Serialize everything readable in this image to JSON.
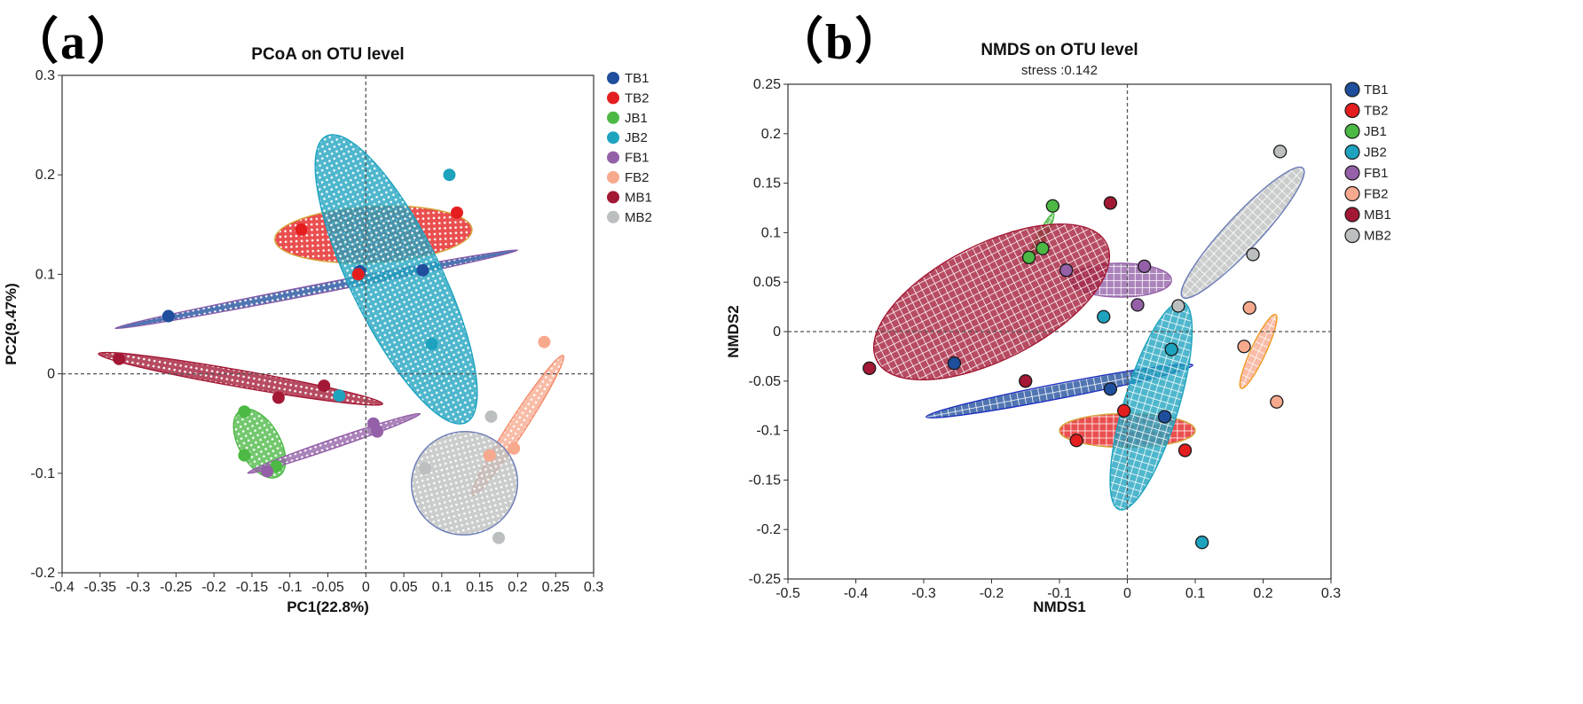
{
  "panel_labels": {
    "a": "（a）",
    "b": "（b）"
  },
  "palette": {
    "TB1": "#1f4e9c",
    "TB2": "#e41e1e",
    "JB1": "#4cb944",
    "JB2": "#1ea3bf",
    "FB1": "#9460a8",
    "FB2": "#f7a98e",
    "MB1": "#a31834",
    "MB2": "#bcbfbf"
  },
  "chart_data": [
    {
      "type": "scatter",
      "title": "PCoA on OTU level",
      "subtitle": "",
      "xlabel": "PC1(22.8%)",
      "ylabel": "PC2(9.47%)",
      "xlim": [
        -0.4,
        0.3
      ],
      "ylim": [
        -0.2,
        0.3
      ],
      "xticks": [
        -0.4,
        -0.35,
        -0.3,
        -0.25,
        -0.2,
        -0.15,
        -0.1,
        -0.05,
        0,
        0.05,
        0.1,
        0.15,
        0.2,
        0.25,
        0.3
      ],
      "xtick_labels": [
        "-0.4",
        "-0.35",
        "-0.3",
        "-0.25",
        "-0.2",
        "-0.15",
        "-0.1",
        "-0.05",
        "0",
        "0.05",
        "0.1",
        "0.15",
        "0.2",
        "0.25",
        "0.3"
      ],
      "yticks": [
        -0.2,
        -0.1,
        0,
        0.1,
        0.2,
        0.3
      ],
      "ytick_labels": [
        "-0.2",
        "-0.1",
        "0",
        "0.1",
        "0.2",
        "0.3"
      ],
      "legend": [
        "TB1",
        "TB2",
        "JB1",
        "JB2",
        "FB1",
        "FB2",
        "MB1",
        "MB2"
      ],
      "marker_outline": false,
      "series": [
        {
          "name": "TB1",
          "points": [
            [
              -0.26,
              0.058
            ],
            [
              -0.008,
              0.103
            ],
            [
              0.075,
              0.104
            ]
          ],
          "ellipse": {
            "cx": -0.065,
            "cy": 0.085,
            "rx": 0.27,
            "ry": 0.006,
            "angle_deg": 11,
            "stroke": "#8a5aa8"
          }
        },
        {
          "name": "TB2",
          "points": [
            [
              -0.085,
              0.145
            ],
            [
              0.12,
              0.162
            ],
            [
              -0.01,
              0.1
            ]
          ],
          "ellipse": {
            "cx": 0.01,
            "cy": 0.14,
            "rx": 0.13,
            "ry": 0.037,
            "angle_deg": 3,
            "stroke": "#d4a537"
          }
        },
        {
          "name": "JB1",
          "points": [
            [
              -0.16,
              -0.038
            ],
            [
              -0.16,
              -0.082
            ],
            [
              -0.118,
              -0.093
            ]
          ],
          "ellipse": {
            "cx": -0.14,
            "cy": -0.07,
            "rx": 0.027,
            "ry": 0.05,
            "angle_deg": 30,
            "stroke": "#4cb944"
          }
        },
        {
          "name": "JB2",
          "points": [
            [
              0.11,
              0.2
            ],
            [
              0.087,
              0.03
            ],
            [
              -0.035,
              -0.022
            ]
          ],
          "ellipse": {
            "cx": 0.04,
            "cy": 0.095,
            "rx": 0.06,
            "ry": 0.21,
            "angle_deg": 26,
            "stroke": "#1ea3bf"
          }
        },
        {
          "name": "FB1",
          "points": [
            [
              -0.13,
              -0.098
            ],
            [
              0.01,
              -0.05
            ],
            [
              0.015,
              -0.058
            ]
          ],
          "ellipse": {
            "cx": -0.042,
            "cy": -0.07,
            "rx": 0.12,
            "ry": 0.006,
            "angle_deg": 19,
            "stroke": "#9460a8"
          }
        },
        {
          "name": "FB2",
          "points": [
            [
              0.235,
              0.032
            ],
            [
              0.195,
              -0.075
            ],
            [
              0.163,
              -0.082
            ]
          ],
          "ellipse": {
            "cx": 0.2,
            "cy": -0.052,
            "rx": 0.11,
            "ry": 0.011,
            "angle_deg": 57,
            "stroke": "#f58c6b"
          }
        },
        {
          "name": "MB1",
          "points": [
            [
              -0.325,
              0.015
            ],
            [
              -0.115,
              -0.024
            ],
            [
              -0.055,
              -0.012
            ]
          ],
          "ellipse": {
            "cx": -0.165,
            "cy": -0.005,
            "rx": 0.19,
            "ry": 0.011,
            "angle_deg": -10,
            "stroke": "#a31834"
          }
        },
        {
          "name": "MB2",
          "points": [
            [
              0.165,
              -0.043
            ],
            [
              0.078,
              -0.095
            ],
            [
              0.175,
              -0.165
            ]
          ],
          "ellipse": {
            "cx": 0.13,
            "cy": -0.11,
            "rx": 0.07,
            "ry": 0.068,
            "angle_deg": 15,
            "stroke": "#6b7bb6"
          }
        }
      ]
    },
    {
      "type": "scatter",
      "title": "NMDS on OTU level",
      "subtitle": "stress :0.142",
      "xlabel": "NMDS1",
      "ylabel": "NMDS2",
      "xlim": [
        -0.5,
        0.3
      ],
      "ylim": [
        -0.25,
        0.25
      ],
      "xticks": [
        -0.5,
        -0.4,
        -0.3,
        -0.2,
        -0.1,
        0,
        0.1,
        0.2,
        0.3
      ],
      "xtick_labels": [
        "-0.5",
        "-0.4",
        "-0.3",
        "-0.2",
        "-0.1",
        "0",
        "0.1",
        "0.2",
        "0.3"
      ],
      "yticks": [
        -0.25,
        -0.2,
        -0.15,
        -0.1,
        -0.05,
        0,
        0.05,
        0.1,
        0.15,
        0.2,
        0.25
      ],
      "ytick_labels": [
        "-0.25",
        "-0.2",
        "-0.15",
        "-0.1",
        "-0.05",
        "0",
        "0.05",
        "0.1",
        "0.15",
        "0.2",
        "0.25"
      ],
      "legend": [
        "TB1",
        "TB2",
        "JB1",
        "JB2",
        "FB1",
        "FB2",
        "MB1",
        "MB2"
      ],
      "marker_outline": true,
      "series": [
        {
          "name": "TB1",
          "points": [
            [
              -0.255,
              -0.032
            ],
            [
              -0.025,
              -0.058
            ],
            [
              0.055,
              -0.086
            ]
          ],
          "ellipse": {
            "cx": -0.1,
            "cy": -0.06,
            "rx": 0.2,
            "ry": 0.011,
            "angle_deg": 11,
            "stroke": "#2030c0"
          }
        },
        {
          "name": "TB2",
          "points": [
            [
              -0.075,
              -0.11
            ],
            [
              -0.005,
              -0.08
            ],
            [
              0.085,
              -0.12
            ]
          ],
          "ellipse": {
            "cx": 0.0,
            "cy": -0.1,
            "rx": 0.1,
            "ry": 0.025,
            "angle_deg": 0,
            "stroke": "#d4a537"
          }
        },
        {
          "name": "JB1",
          "points": [
            [
              -0.145,
              0.075
            ],
            [
              -0.125,
              0.084
            ],
            [
              -0.11,
              0.127
            ]
          ],
          "ellipse": {
            "cx": -0.127,
            "cy": 0.095,
            "rx": 0.04,
            "ry": 0.006,
            "angle_deg": 63,
            "stroke": "#4cb944"
          }
        },
        {
          "name": "JB2",
          "points": [
            [
              -0.035,
              0.015
            ],
            [
              0.065,
              -0.018
            ],
            [
              0.11,
              -0.213
            ]
          ],
          "ellipse": {
            "cx": 0.035,
            "cy": -0.075,
            "rx": 0.16,
            "ry": 0.04,
            "angle_deg": 73,
            "stroke": "#1ea3bf"
          }
        },
        {
          "name": "FB1",
          "points": [
            [
              -0.09,
              0.062
            ],
            [
              0.025,
              0.066
            ],
            [
              0.015,
              0.027
            ]
          ],
          "ellipse": {
            "cx": -0.01,
            "cy": 0.052,
            "rx": 0.075,
            "ry": 0.025,
            "angle_deg": 0,
            "stroke": "#9460a8"
          }
        },
        {
          "name": "FB2",
          "points": [
            [
              0.18,
              0.024
            ],
            [
              0.172,
              -0.015
            ],
            [
              0.22,
              -0.071
            ]
          ],
          "ellipse": {
            "cx": 0.193,
            "cy": -0.02,
            "rx": 0.06,
            "ry": 0.011,
            "angle_deg": 65,
            "stroke": "#f09a1e"
          }
        },
        {
          "name": "MB1",
          "points": [
            [
              -0.38,
              -0.037
            ],
            [
              -0.025,
              0.13
            ],
            [
              -0.15,
              -0.05
            ]
          ],
          "ellipse": {
            "cx": -0.2,
            "cy": 0.03,
            "rx": 0.19,
            "ry": 0.085,
            "angle_deg": 27,
            "stroke": "#a31834"
          }
        },
        {
          "name": "MB2",
          "points": [
            [
              0.075,
              0.026
            ],
            [
              0.185,
              0.078
            ],
            [
              0.225,
              0.182
            ]
          ],
          "ellipse": {
            "cx": 0.17,
            "cy": 0.1,
            "rx": 0.13,
            "ry": 0.025,
            "angle_deg": 47,
            "stroke": "#6b7bb6"
          }
        }
      ]
    }
  ]
}
